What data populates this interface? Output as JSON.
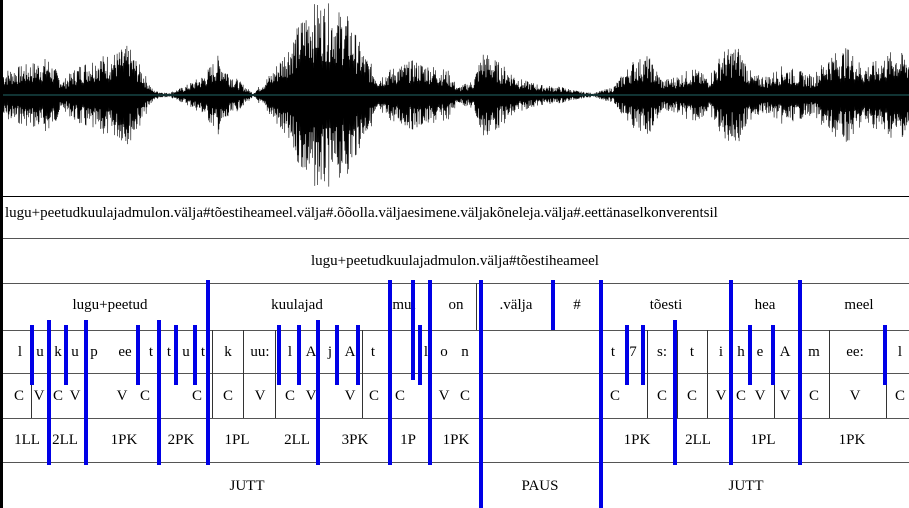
{
  "tiers": {
    "sentence": "lugu+peetudkuulajadmulon.välja#tõestiheameel.välja#.õõolla.väljaesimene.väljakõneleja.välja#.eettänaselkonverentsil",
    "phrase": "lugu+peetudkuulajadmulon.välja#tõestiheameel",
    "words": [
      "lugu+peetud",
      "kuulajad",
      "mul",
      "on",
      ".välja",
      "#",
      "tõesti",
      "hea",
      "meel"
    ],
    "phones": [
      "l",
      "u",
      "k",
      "u",
      "p",
      "ee",
      "t",
      "t",
      "u",
      "t",
      "k",
      "uu:",
      "l",
      "A",
      "j",
      "A",
      "t",
      "l",
      "o",
      "n",
      "t",
      "7",
      "s:",
      "t",
      "i",
      "h",
      "e",
      "A",
      "m",
      "ee:",
      "l"
    ],
    "cv": [
      "C",
      "V",
      "C",
      "V",
      "V",
      "C",
      "C",
      "C",
      "V",
      "C",
      "V",
      "V",
      "C",
      "C",
      "V",
      "C",
      "C",
      "C",
      "C",
      "V",
      "C",
      "V",
      "V",
      "C",
      "V",
      "C",
      "C"
    ],
    "syllables": [
      "1LL",
      "2LL",
      "1PK",
      "2PK",
      "1PL",
      "2LL",
      "3PK",
      "1P",
      "1PK",
      "1PK",
      "2LL",
      "1PL",
      "1PK"
    ],
    "segments": [
      "JUTT",
      "PAUS",
      "JUTT"
    ]
  },
  "colors": {
    "boundary": "#0000e6",
    "waveform": "#000000",
    "background": "#ffffff"
  }
}
